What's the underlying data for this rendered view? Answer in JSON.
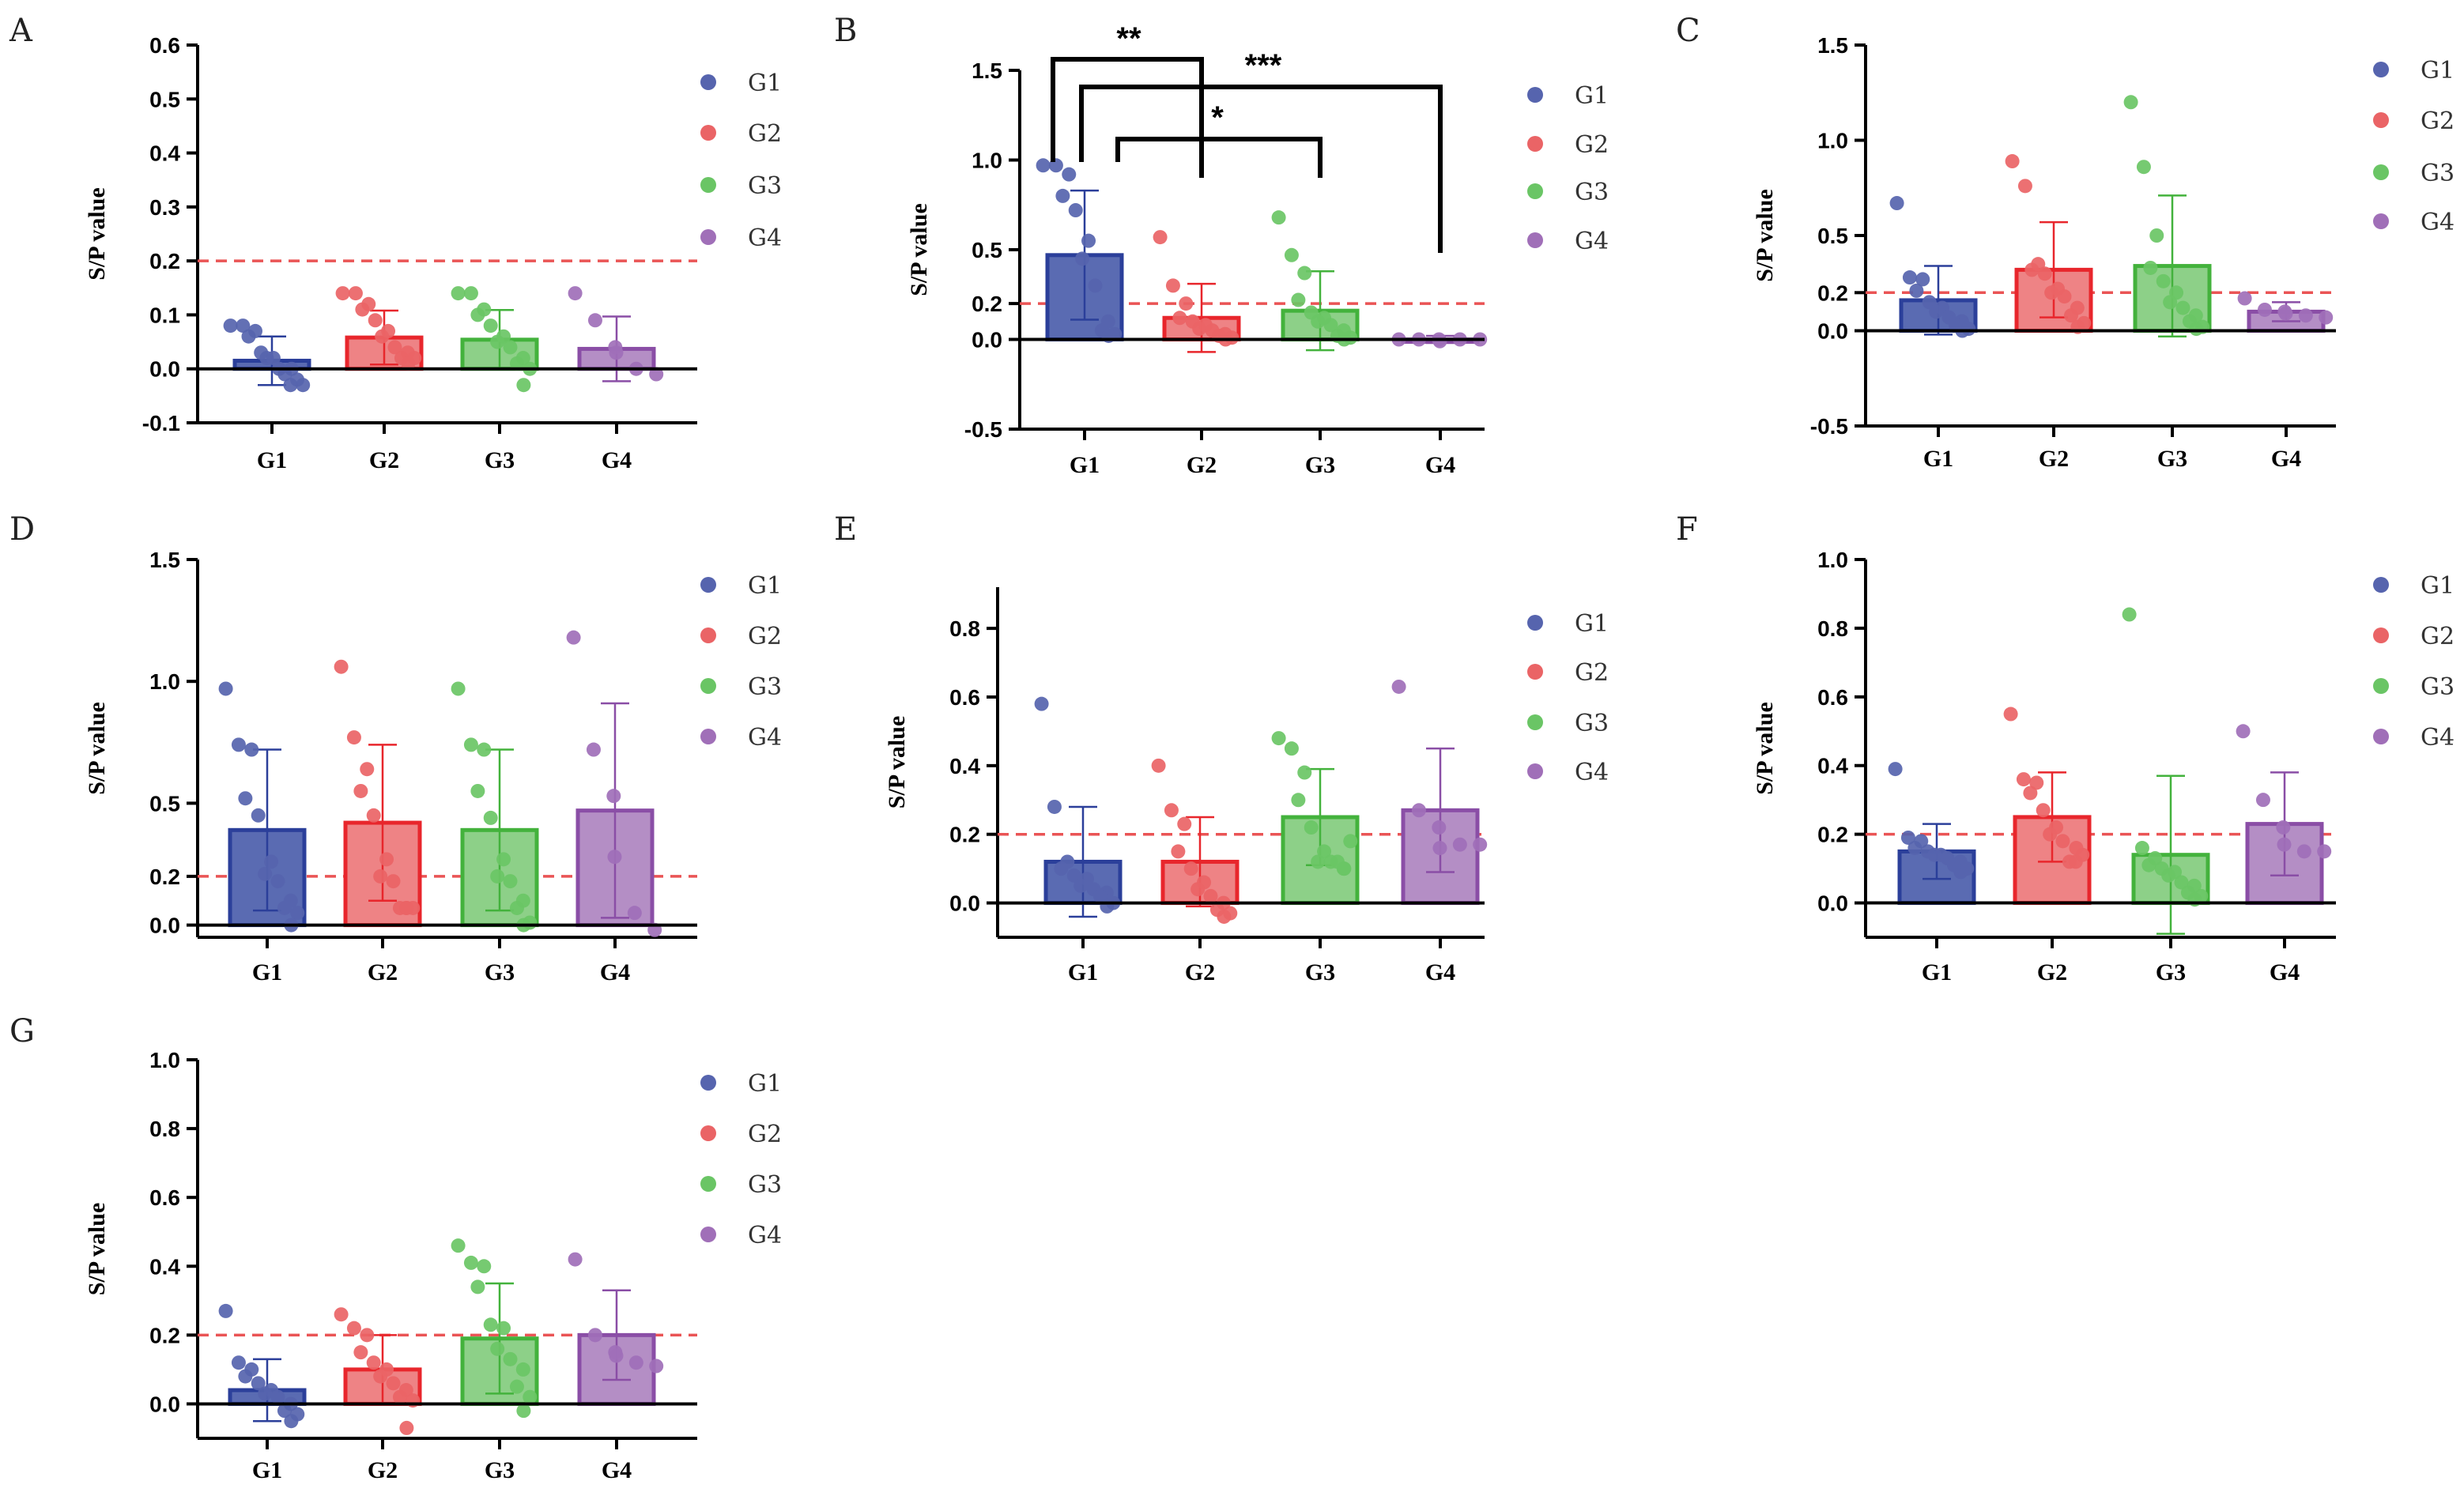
{
  "colors": {
    "G1": {
      "fill": "#5a6bb2",
      "stroke": "#2b3f9a",
      "dot": "#5664ae"
    },
    "G2": {
      "fill": "#ee8385",
      "stroke": "#e8262c",
      "dot": "#ea6466"
    },
    "G3": {
      "fill": "#8dd088",
      "stroke": "#43b23c",
      "dot": "#6ac565"
    },
    "G4": {
      "fill": "#b48ec5",
      "stroke": "#8a4ea6",
      "dot": "#a06fb8"
    },
    "threshold": "#ea5455"
  },
  "chart_data": [
    {
      "panel": "A",
      "type": "bar",
      "ylabel": "S/P value",
      "categories": [
        "G1",
        "G2",
        "G3",
        "G4"
      ],
      "legend": [
        "G1",
        "G2",
        "G3",
        "G4"
      ],
      "ylim": [
        -0.1,
        0.6
      ],
      "yticks": [
        -0.1,
        0.0,
        0.1,
        0.2,
        0.3,
        0.4,
        0.5,
        0.6
      ],
      "ytick_labels": [
        "-0.1",
        "0.0",
        "0.1",
        "0.2",
        "0.3",
        "0.4",
        "0.5",
        "0.6"
      ],
      "threshold": 0.2,
      "means": [
        0.015,
        0.058,
        0.054,
        0.037
      ],
      "sd": [
        0.045,
        0.05,
        0.055,
        0.06
      ],
      "points": [
        [
          0.08,
          0.08,
          0.07,
          0.06,
          0.03,
          0.02,
          0.02,
          0.0,
          0.0,
          -0.01,
          -0.02,
          -0.03,
          -0.03
        ],
        [
          0.14,
          0.14,
          0.12,
          0.11,
          0.09,
          0.07,
          0.06,
          0.04,
          0.03,
          0.02,
          0.02,
          0.01
        ],
        [
          0.14,
          0.14,
          0.11,
          0.1,
          0.08,
          0.06,
          0.05,
          0.04,
          0.02,
          0.01,
          0.0,
          -0.03
        ],
        [
          0.14,
          0.09,
          0.04,
          0.03,
          0.0,
          -0.01
        ]
      ]
    },
    {
      "panel": "B",
      "type": "bar",
      "ylabel": "S/P value",
      "categories": [
        "G1",
        "G2",
        "G3",
        "G4"
      ],
      "legend": [
        "G1",
        "G2",
        "G3",
        "G4"
      ],
      "ylim": [
        -0.5,
        1.5
      ],
      "yticks": [
        -0.5,
        0.0,
        0.2,
        0.5,
        1.0,
        1.5
      ],
      "ytick_labels": [
        "-0.5",
        "0.0",
        "0.2",
        "0.5",
        "1.0",
        "1.5"
      ],
      "threshold": 0.2,
      "means": [
        0.47,
        0.12,
        0.16,
        0.0
      ],
      "sd": [
        0.36,
        0.19,
        0.22,
        0.02
      ],
      "points": [
        [
          0.97,
          0.97,
          0.92,
          0.8,
          0.72,
          0.55,
          0.45,
          0.3,
          0.1,
          0.05,
          0.03,
          0.02
        ],
        [
          0.57,
          0.3,
          0.2,
          0.12,
          0.1,
          0.08,
          0.06,
          0.05,
          0.03,
          0.02,
          0.01,
          0.0
        ],
        [
          0.68,
          0.47,
          0.37,
          0.22,
          0.15,
          0.12,
          0.1,
          0.08,
          0.05,
          0.02,
          0.01,
          0.0
        ],
        [
          0.0,
          0.0,
          0.0,
          -0.01,
          0.0,
          0.0
        ]
      ],
      "significance": [
        {
          "from": "G1",
          "to": "G2",
          "label": "**"
        },
        {
          "from": "G1",
          "to": "G4",
          "label": "***"
        },
        {
          "from": "G1",
          "to": "G3",
          "label": "*"
        }
      ]
    },
    {
      "panel": "C",
      "type": "bar",
      "ylabel": "S/P value",
      "categories": [
        "G1",
        "G2",
        "G3",
        "G4"
      ],
      "legend": [
        "G1",
        "G2",
        "G3",
        "G4"
      ],
      "ylim": [
        -0.5,
        1.5
      ],
      "yticks": [
        -0.5,
        0.0,
        0.2,
        0.5,
        1.0,
        1.5
      ],
      "ytick_labels": [
        "-0.5",
        "0.0",
        "0.2",
        "0.5",
        "1.0",
        "1.5"
      ],
      "threshold": 0.2,
      "means": [
        0.16,
        0.32,
        0.34,
        0.1
      ],
      "sd": [
        0.18,
        0.25,
        0.37,
        0.05
      ],
      "points": [
        [
          0.67,
          0.28,
          0.27,
          0.21,
          0.15,
          0.12,
          0.1,
          0.07,
          0.05,
          0.03,
          0.01,
          0.0
        ],
        [
          0.89,
          0.76,
          0.35,
          0.32,
          0.3,
          0.22,
          0.2,
          0.18,
          0.12,
          0.08,
          0.04,
          0.02
        ],
        [
          1.2,
          0.86,
          0.5,
          0.33,
          0.26,
          0.2,
          0.15,
          0.12,
          0.08,
          0.05,
          0.02,
          0.01
        ],
        [
          0.17,
          0.11,
          0.1,
          0.09,
          0.08,
          0.07
        ]
      ]
    },
    {
      "panel": "D",
      "type": "bar",
      "ylabel": "S/P value",
      "categories": [
        "G1",
        "G2",
        "G3",
        "G4"
      ],
      "legend": [
        "G1",
        "G2",
        "G3",
        "G4"
      ],
      "ylim": [
        -0.05,
        1.5
      ],
      "yticks": [
        0.0,
        0.2,
        0.5,
        1.0,
        1.5
      ],
      "ytick_labels": [
        "0.0",
        "0.2",
        "0.5",
        "1.0",
        "1.5"
      ],
      "threshold": 0.2,
      "means": [
        0.39,
        0.42,
        0.39,
        0.47
      ],
      "sd": [
        0.33,
        0.32,
        0.33,
        0.44
      ],
      "points": [
        [
          0.97,
          0.74,
          0.72,
          0.52,
          0.45,
          0.26,
          0.21,
          0.18,
          0.1,
          0.07,
          0.05,
          0.0
        ],
        [
          1.06,
          0.77,
          0.64,
          0.55,
          0.45,
          0.27,
          0.2,
          0.18,
          0.07,
          0.07,
          0.07,
          0.07
        ],
        [
          0.97,
          0.74,
          0.72,
          0.55,
          0.44,
          0.27,
          0.2,
          0.18,
          0.1,
          0.07,
          0.01,
          0.0
        ],
        [
          1.18,
          0.72,
          0.53,
          0.28,
          0.05,
          -0.02
        ]
      ]
    },
    {
      "panel": "E",
      "type": "bar",
      "ylabel": "S/P value",
      "categories": [
        "G1",
        "G2",
        "G3",
        "G4"
      ],
      "legend": [
        "G1",
        "G2",
        "G3",
        "G4"
      ],
      "ylim": [
        -0.1,
        0.92
      ],
      "yticks": [
        0.0,
        0.2,
        0.4,
        0.6,
        0.8
      ],
      "ytick_labels": [
        "0.0",
        "0.2",
        "0.4",
        "0.6",
        "0.8"
      ],
      "threshold": 0.2,
      "means": [
        0.12,
        0.12,
        0.25,
        0.27
      ],
      "sd": [
        0.16,
        0.13,
        0.14,
        0.18
      ],
      "points": [
        [
          0.58,
          0.28,
          0.12,
          0.1,
          0.08,
          0.07,
          0.05,
          0.04,
          0.03,
          0.02,
          0.0,
          -0.01
        ],
        [
          0.4,
          0.27,
          0.23,
          0.15,
          0.1,
          0.06,
          0.04,
          0.02,
          0.0,
          -0.02,
          -0.03,
          -0.04
        ],
        [
          0.48,
          0.45,
          0.38,
          0.3,
          0.22,
          0.15,
          0.12,
          0.12,
          0.1,
          0.12,
          0.18,
          0.1
        ],
        [
          0.63,
          0.27,
          0.22,
          0.16,
          0.17,
          0.17
        ]
      ]
    },
    {
      "panel": "F",
      "type": "bar",
      "ylabel": "S/P value",
      "categories": [
        "G1",
        "G2",
        "G3",
        "G4"
      ],
      "legend": [
        "G1",
        "G2",
        "G3",
        "G4"
      ],
      "ylim": [
        -0.1,
        1.0
      ],
      "yticks": [
        0.0,
        0.2,
        0.4,
        0.6,
        0.8,
        1.0
      ],
      "ytick_labels": [
        "0.0",
        "0.2",
        "0.4",
        "0.6",
        "0.8",
        "1.0"
      ],
      "threshold": 0.2,
      "means": [
        0.15,
        0.25,
        0.14,
        0.23
      ],
      "sd": [
        0.08,
        0.13,
        0.23,
        0.15
      ],
      "points": [
        [
          0.39,
          0.19,
          0.18,
          0.16,
          0.15,
          0.14,
          0.14,
          0.13,
          0.12,
          0.11,
          0.1,
          0.09
        ],
        [
          0.55,
          0.36,
          0.35,
          0.32,
          0.27,
          0.22,
          0.2,
          0.18,
          0.12,
          0.12,
          0.14,
          0.16
        ],
        [
          0.84,
          0.16,
          0.13,
          0.11,
          0.1,
          0.09,
          0.08,
          0.06,
          0.05,
          0.03,
          0.02,
          0.01
        ],
        [
          0.5,
          0.3,
          0.22,
          0.17,
          0.15,
          0.15
        ]
      ]
    },
    {
      "panel": "G",
      "type": "bar",
      "ylabel": "S/P value",
      "categories": [
        "G1",
        "G2",
        "G3",
        "G4"
      ],
      "legend": [
        "G1",
        "G2",
        "G3",
        "G4"
      ],
      "ylim": [
        -0.1,
        1.0
      ],
      "yticks": [
        0.0,
        0.2,
        0.4,
        0.6,
        0.8,
        1.0
      ],
      "ytick_labels": [
        "0.0",
        "0.2",
        "0.4",
        "0.6",
        "0.8",
        "1.0"
      ],
      "threshold": 0.2,
      "means": [
        0.04,
        0.1,
        0.19,
        0.2
      ],
      "sd": [
        0.09,
        0.1,
        0.16,
        0.13
      ],
      "points": [
        [
          0.27,
          0.12,
          0.1,
          0.08,
          0.06,
          0.04,
          0.03,
          0.02,
          0.0,
          -0.02,
          -0.03,
          -0.05
        ],
        [
          0.26,
          0.22,
          0.2,
          0.15,
          0.12,
          0.1,
          0.08,
          0.06,
          0.04,
          0.02,
          0.01,
          -0.07
        ],
        [
          0.46,
          0.41,
          0.4,
          0.34,
          0.23,
          0.22,
          0.16,
          0.13,
          0.1,
          0.05,
          0.02,
          -0.02
        ],
        [
          0.42,
          0.2,
          0.15,
          0.14,
          0.12,
          0.11
        ]
      ]
    }
  ]
}
